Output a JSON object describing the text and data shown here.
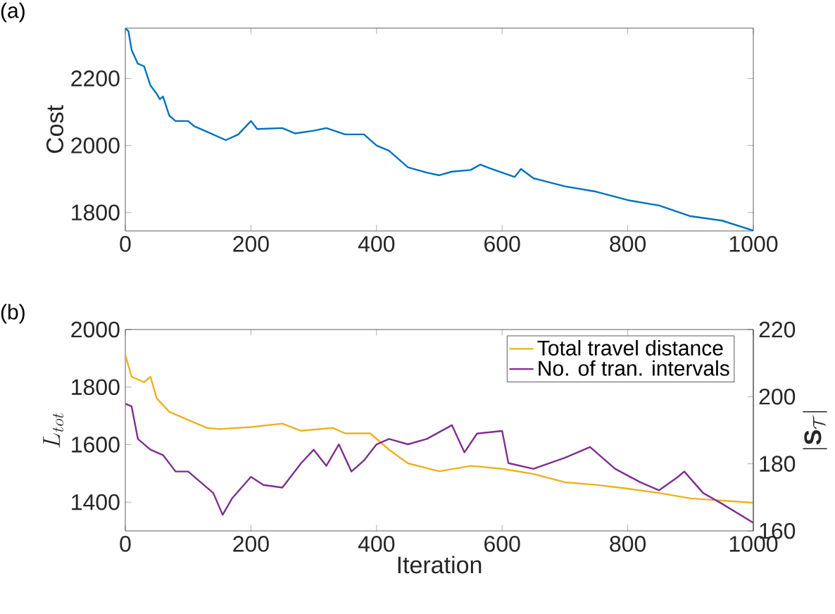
{
  "chart_data": [
    {
      "type": "line",
      "title": "(a)",
      "ylabel": "Cost",
      "color": "#0072bd",
      "x": [
        0,
        5,
        10,
        20,
        30,
        40,
        50,
        55,
        60,
        70,
        80,
        100,
        110,
        130,
        160,
        180,
        200,
        210,
        250,
        270,
        300,
        320,
        350,
        380,
        400,
        420,
        450,
        480,
        500,
        520,
        550,
        565,
        580,
        600,
        620,
        630,
        650,
        700,
        750,
        800,
        850,
        900,
        950,
        1000
      ],
      "values": [
        2350,
        2341,
        2285,
        2244,
        2236,
        2179,
        2154,
        2138,
        2146,
        2089,
        2073,
        2073,
        2057,
        2041,
        2016,
        2033,
        2073,
        2049,
        2052,
        2036,
        2044,
        2052,
        2033,
        2033,
        2000,
        1984,
        1935,
        1919,
        1911,
        1922,
        1927,
        1943,
        1932,
        1919,
        1906,
        1930,
        1902,
        1878,
        1862,
        1837,
        1821,
        1789,
        1776,
        1746
      ],
      "xlim": [
        0,
        1000
      ],
      "ylim": [
        1745,
        2350
      ],
      "xticks": [
        0,
        200,
        400,
        600,
        800,
        1000
      ],
      "yticks": [
        1800,
        2000,
        2200
      ]
    },
    {
      "type": "line",
      "title": "(b)",
      "xlabel": "Iteration",
      "ylabel": "L_{tot}",
      "y2label": "|\\mathbf{S}_{\\mathcal{T}}|",
      "legend": "top right",
      "series": [
        {
          "name": "Total travel distance",
          "color": "#edb120",
          "x": [
            0,
            10,
            30,
            40,
            50,
            70,
            100,
            130,
            150,
            200,
            250,
            280,
            330,
            350,
            390,
            420,
            450,
            500,
            550,
            600,
            650,
            700,
            750,
            800,
            850,
            900,
            1000
          ],
          "values": [
            1912,
            1836,
            1817,
            1836,
            1761,
            1714,
            1686,
            1658,
            1654,
            1661,
            1673,
            1648,
            1658,
            1639,
            1639,
            1582,
            1535,
            1507,
            1526,
            1516,
            1498,
            1469,
            1460,
            1447,
            1432,
            1413,
            1398
          ]
        },
        {
          "name": "No. of tran. intervals",
          "color": "#7e2f8e",
          "axis": "y2",
          "x": [
            0,
            10,
            20,
            40,
            60,
            80,
            100,
            120,
            140,
            155,
            170,
            200,
            220,
            250,
            280,
            300,
            320,
            340,
            360,
            380,
            400,
            420,
            450,
            480,
            520,
            540,
            560,
            600,
            610,
            650,
            700,
            740,
            780,
            820,
            850,
            880,
            890,
            920,
            950,
            1000
          ],
          "values": [
            197.9,
            197.1,
            187.4,
            184.2,
            182.6,
            177.7,
            177.7,
            174.5,
            171.3,
            164.8,
            169.7,
            176.1,
            173.7,
            172.9,
            180.2,
            184.2,
            179.4,
            185.8,
            177.7,
            181.0,
            185.8,
            187.4,
            185.8,
            187.4,
            191.5,
            183.4,
            189.0,
            189.8,
            180.2,
            178.5,
            181.8,
            185.0,
            178.5,
            174.5,
            172.1,
            176.1,
            177.7,
            171.3,
            168.1,
            162.4
          ]
        }
      ],
      "xlim": [
        0,
        1000
      ],
      "ylim": [
        1300,
        2000
      ],
      "y2lim": [
        160,
        220
      ],
      "xticks": [
        0,
        200,
        400,
        600,
        800,
        1000
      ],
      "yticks": [
        1400,
        1600,
        1800,
        2000
      ],
      "y2ticks": [
        160,
        180,
        200,
        220
      ]
    }
  ]
}
